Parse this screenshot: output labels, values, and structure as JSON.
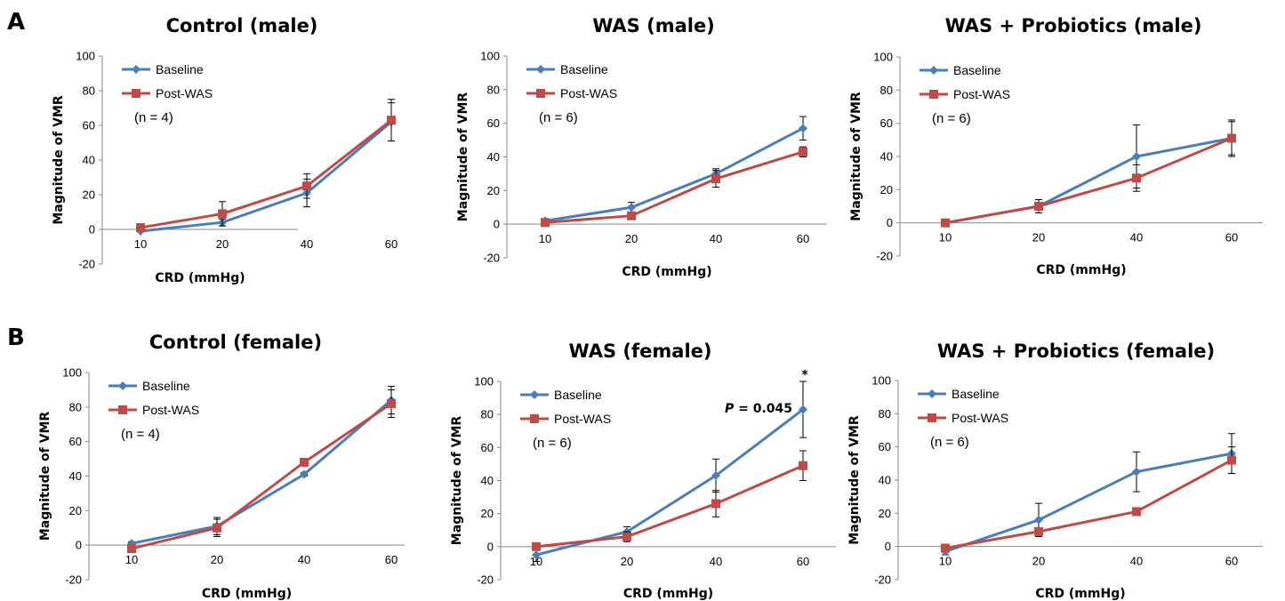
{
  "figure": {
    "panel_labels": [
      "A",
      "B"
    ]
  },
  "colors": {
    "baseline": "#4a7ebb",
    "post_was": "#be4b48"
  },
  "chart_data": [
    {
      "type": "line",
      "title": "Control (male)",
      "xlabel": "CRD (mmHg)",
      "ylabel": "Magnitude of VMR",
      "categories": [
        "10",
        "20",
        "40",
        "60"
      ],
      "ylim": [
        -20,
        100
      ],
      "yticks": [
        "-20",
        "0",
        "20",
        "40",
        "60",
        "80",
        "100"
      ],
      "legend": "top-left",
      "note": "(n = 4)",
      "series": [
        {
          "name": "Baseline",
          "values": [
            -1,
            4,
            21,
            62
          ],
          "err": [
            0,
            2,
            8,
            11
          ]
        },
        {
          "name": "Post-WAS",
          "values": [
            1,
            9,
            25,
            63
          ],
          "err": [
            0,
            7,
            7,
            12
          ]
        }
      ]
    },
    {
      "type": "line",
      "title": "WAS (male)",
      "xlabel": "CRD (mmHg)",
      "ylabel": "Magnitude of VMR",
      "categories": [
        "10",
        "20",
        "40",
        "60"
      ],
      "ylim": [
        -20,
        100
      ],
      "yticks": [
        "-20",
        "0",
        "20",
        "40",
        "60",
        "80",
        "100"
      ],
      "legend": "top-left",
      "note": "(n = 6)",
      "series": [
        {
          "name": "Baseline",
          "values": [
            2,
            10,
            30,
            57
          ],
          "err": [
            1,
            3,
            3,
            7
          ]
        },
        {
          "name": "Post-WAS",
          "values": [
            1,
            5,
            27,
            43
          ],
          "err": [
            1,
            2,
            5,
            3
          ]
        }
      ]
    },
    {
      "type": "line",
      "title": "WAS + Probiotics (male)",
      "xlabel": "CRD (mmHg)",
      "ylabel": "Magnitude of VMR",
      "categories": [
        "10",
        "20",
        "40",
        "60"
      ],
      "ylim": [
        -20,
        100
      ],
      "yticks": [
        "-20",
        "0",
        "20",
        "40",
        "60",
        "80",
        "100"
      ],
      "legend": "top-left",
      "note": "(n = 6)",
      "series": [
        {
          "name": "Baseline",
          "values": [
            0,
            10,
            40,
            51
          ],
          "err": [
            2,
            4,
            19,
            11
          ]
        },
        {
          "name": "Post-WAS",
          "values": [
            0,
            10,
            27,
            51
          ],
          "err": [
            1,
            4,
            8,
            10
          ]
        }
      ]
    },
    {
      "type": "line",
      "title": "Control (female)",
      "xlabel": "CRD (mmHg)",
      "ylabel": "Magnitude of VMR",
      "categories": [
        "10",
        "20",
        "40",
        "60"
      ],
      "ylim": [
        -20,
        100
      ],
      "yticks": [
        "-20",
        "0",
        "20",
        "40",
        "60",
        "80",
        "100"
      ],
      "legend": "top-left",
      "note": "(n = 4)",
      "series": [
        {
          "name": "Baseline",
          "values": [
            1,
            11,
            41,
            84
          ],
          "err": [
            1,
            5,
            1,
            8
          ]
        },
        {
          "name": "Post-WAS",
          "values": [
            -2,
            10,
            48,
            82
          ],
          "err": [
            1,
            5,
            1,
            8
          ]
        }
      ]
    },
    {
      "type": "line",
      "title": "WAS (female)",
      "xlabel": "CRD (mmHg)",
      "ylabel": "Magnitude of VMR",
      "categories": [
        "10",
        "20",
        "40",
        "60"
      ],
      "ylim": [
        -20,
        100
      ],
      "yticks": [
        "-20",
        "0",
        "20",
        "40",
        "60",
        "80",
        "100"
      ],
      "legend": "top-left",
      "note": "(n = 6)",
      "annotation": {
        "p_label": "P",
        "p_value": "= 0.045",
        "star": "*"
      },
      "series": [
        {
          "name": "Baseline",
          "values": [
            -5,
            9,
            43,
            83
          ],
          "err": [
            4,
            3,
            10,
            17
          ]
        },
        {
          "name": "Post-WAS",
          "values": [
            0,
            6,
            26,
            49
          ],
          "err": [
            1,
            3,
            8,
            9
          ]
        }
      ]
    },
    {
      "type": "line",
      "title": "WAS + Probiotics (female)",
      "xlabel": "CRD (mmHg)",
      "ylabel": "Magnitude of VMR",
      "categories": [
        "10",
        "20",
        "40",
        "60"
      ],
      "ylim": [
        -20,
        100
      ],
      "yticks": [
        "-20",
        "0",
        "20",
        "40",
        "60",
        "80",
        "100"
      ],
      "legend": "top-left",
      "note": "(n = 6)",
      "series": [
        {
          "name": "Baseline",
          "values": [
            -3,
            16,
            45,
            56
          ],
          "err": [
            2,
            10,
            12,
            12
          ]
        },
        {
          "name": "Post-WAS",
          "values": [
            -1,
            9,
            21,
            52
          ],
          "err": [
            1,
            2,
            2,
            8
          ]
        }
      ]
    }
  ]
}
